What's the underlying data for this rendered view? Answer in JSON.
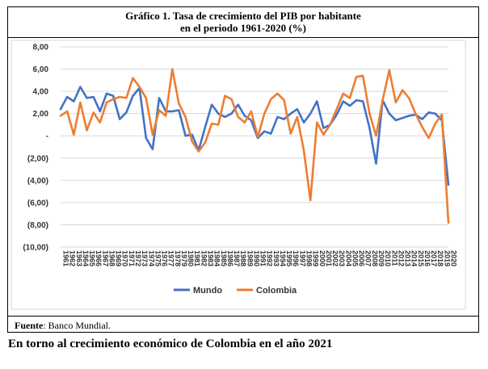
{
  "figure": {
    "title_line1": "Gráfico 1. Tasa de crecimiento del PIB por habitante",
    "title_line2": "en el periodo 1961-2020 (%)",
    "source_label": "Fuente",
    "source_text": ": Banco Mundial.",
    "caption": "En torno al crecimiento económico de Colombia en el año 2021"
  },
  "colors": {
    "mundo": "#4472C4",
    "colombia": "#ED7D31",
    "grid": "#D9D9D9"
  },
  "chart_data": {
    "type": "line",
    "title": "Gráfico 1. Tasa de crecimiento del PIB por habitante en el periodo 1961-2020 (%)",
    "xlabel": "",
    "ylabel": "",
    "ylim": [
      -10,
      8
    ],
    "yticks": [
      "8,00",
      "6,00",
      "4,00",
      "2,00",
      "-",
      "(2,00)",
      "(4,00)",
      "(6,00)",
      "(8,00)",
      "(10,00)"
    ],
    "ytick_values": [
      8,
      6,
      4,
      2,
      0,
      -2,
      -4,
      -6,
      -8,
      -10
    ],
    "grid": "horizontal",
    "legend_position": "bottom",
    "x": [
      1961,
      1962,
      1963,
      1964,
      1965,
      1966,
      1967,
      1968,
      1969,
      1970,
      1971,
      1972,
      1973,
      1974,
      1975,
      1976,
      1977,
      1978,
      1979,
      1980,
      1981,
      1982,
      1983,
      1984,
      1985,
      1986,
      1987,
      1988,
      1989,
      1990,
      1991,
      1992,
      1993,
      1994,
      1995,
      1996,
      1997,
      1998,
      1999,
      2000,
      2001,
      2002,
      2003,
      2004,
      2005,
      2006,
      2007,
      2008,
      2009,
      2010,
      2011,
      2012,
      2013,
      2014,
      2015,
      2016,
      2017,
      2018,
      2019,
      2020
    ],
    "series": [
      {
        "name": "Mundo",
        "values": [
          2.4,
          3.5,
          3.1,
          4.4,
          3.4,
          3.5,
          2.2,
          3.8,
          3.6,
          1.5,
          2.1,
          3.6,
          4.3,
          -0.2,
          -1.2,
          3.4,
          2.2,
          2.2,
          2.3,
          0.0,
          0.1,
          -1.3,
          0.8,
          2.8,
          2.0,
          1.7,
          2.0,
          2.8,
          1.8,
          1.4,
          -0.2,
          0.4,
          0.2,
          1.7,
          1.5,
          2.0,
          2.4,
          1.2,
          2.0,
          3.1,
          0.7,
          1.0,
          1.9,
          3.1,
          2.7,
          3.2,
          3.1,
          0.7,
          -2.5,
          3.2,
          2.0,
          1.4,
          1.6,
          1.8,
          1.9,
          1.5,
          2.1,
          2.0,
          1.4,
          -4.4
        ]
      },
      {
        "name": "Colombia",
        "values": [
          1.8,
          2.2,
          0.1,
          3.0,
          0.5,
          2.1,
          1.2,
          3.0,
          3.3,
          3.5,
          3.4,
          5.2,
          4.4,
          3.4,
          0.1,
          2.3,
          1.8,
          6.0,
          2.9,
          1.7,
          -0.5,
          -1.4,
          -0.6,
          1.1,
          1.0,
          3.6,
          3.3,
          1.7,
          1.2,
          2.2,
          -0.1,
          2.0,
          3.3,
          3.8,
          3.2,
          0.2,
          1.7,
          -1.3,
          -5.8,
          1.2,
          0.1,
          1.0,
          2.4,
          3.8,
          3.4,
          5.3,
          5.4,
          2.0,
          0.0,
          3.2,
          5.9,
          3.0,
          4.1,
          3.4,
          2.0,
          0.8,
          -0.2,
          1.1,
          1.9,
          -7.8
        ]
      }
    ]
  }
}
